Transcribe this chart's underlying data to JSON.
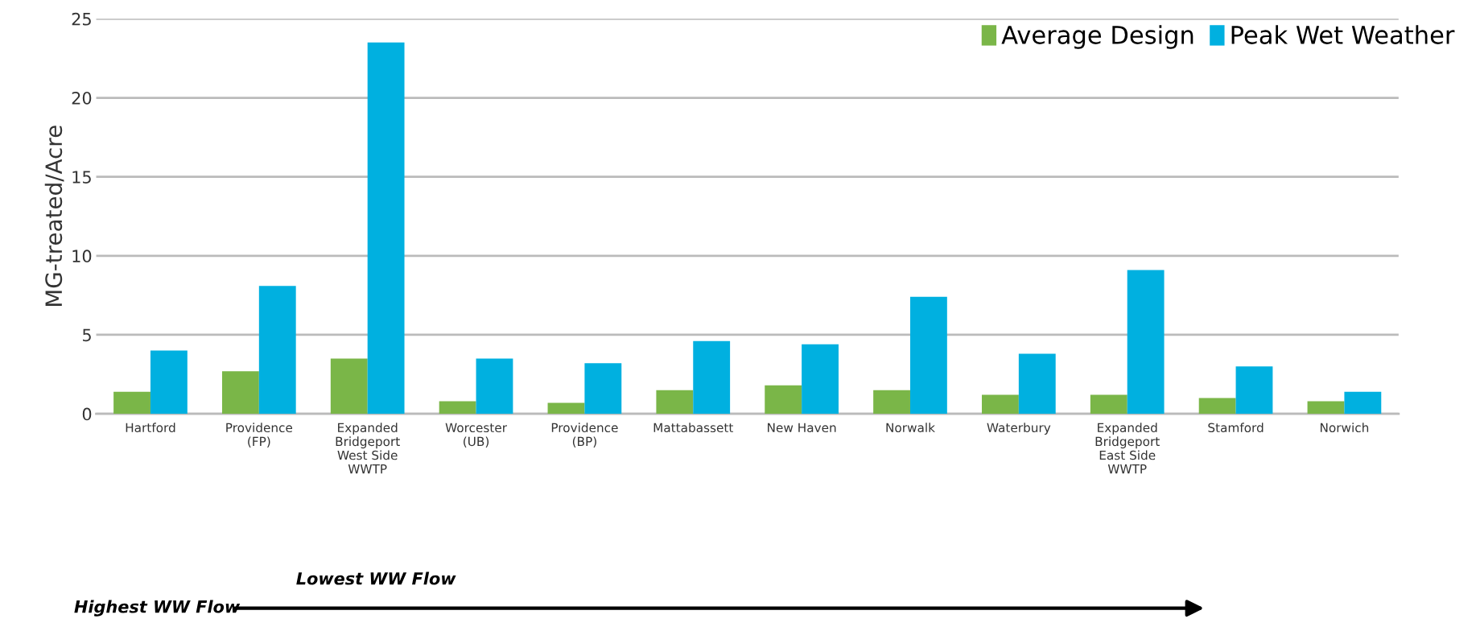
{
  "chart_data": {
    "type": "bar",
    "ylabel": "MG-treated/Acre",
    "categories": [
      "Hartford",
      "Providence\n(FP)",
      "Expanded\nBridgeport\nWest Side\nWWTP",
      "Worcester\n(UB)",
      "Providence\n(BP)",
      "Mattabassett",
      "New Haven",
      "Norwalk",
      "Waterbury",
      "Expanded\nBridgeport\nEast Side\nWWTP",
      "Stamford",
      "Norwich"
    ],
    "series": [
      {
        "name": "Average Design",
        "color": "#7ab648",
        "values": [
          1.4,
          2.7,
          3.5,
          0.8,
          0.7,
          1.5,
          1.8,
          1.5,
          1.2,
          1.2,
          1.0,
          0.8
        ]
      },
      {
        "name": "Peak Wet Weather",
        "color": "#00b0e0",
        "values": [
          4.0,
          8.1,
          23.5,
          3.5,
          3.2,
          4.6,
          4.4,
          7.4,
          3.8,
          9.1,
          3.0,
          1.4
        ]
      }
    ],
    "ylim": [
      0,
      25
    ],
    "yticks": [
      0,
      5,
      10,
      15,
      20,
      25
    ],
    "grid": "y",
    "legend": "top right",
    "annotations": [
      "Highest WW Flow",
      "Lowest WW Flow"
    ]
  }
}
